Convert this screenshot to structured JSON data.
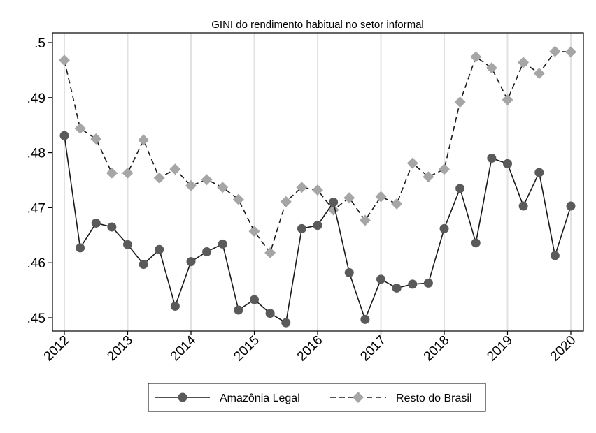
{
  "chart_data": {
    "type": "line",
    "title": "GINI do rendimento habitual no setor informal",
    "xlabel": "",
    "ylabel": "",
    "xlim": [
      2012,
      2020
    ],
    "ylim": [
      0.448,
      0.501
    ],
    "x_ticks": [
      2012,
      2013,
      2014,
      2015,
      2016,
      2017,
      2018,
      2019,
      2020
    ],
    "x_tick_labels": [
      "2012",
      "2013",
      "2014",
      "2015",
      "2016",
      "2017",
      "2018",
      "2019",
      "2020"
    ],
    "y_ticks": [
      0.45,
      0.46,
      0.47,
      0.48,
      0.49,
      0.5
    ],
    "y_tick_labels": [
      ".45",
      ".46",
      ".47",
      ".48",
      ".49",
      ".5"
    ],
    "grid": "vertical",
    "legend_position": "bottom",
    "x": [
      2012,
      2012.25,
      2012.5,
      2012.75,
      2013,
      2013.25,
      2013.5,
      2013.75,
      2014,
      2014.25,
      2014.5,
      2014.75,
      2015,
      2015.25,
      2015.5,
      2015.75,
      2016,
      2016.25,
      2016.5,
      2016.75,
      2017,
      2017.25,
      2017.5,
      2017.75,
      2018,
      2018.25,
      2018.5,
      2018.75,
      2019,
      2019.25,
      2019.5,
      2019.75,
      2020
    ],
    "series": [
      {
        "name": "Amazônia Legal",
        "color": "#1a1a1a",
        "marker_color": "#5a5a5a",
        "marker": "circle",
        "line_style": "solid",
        "values": [
          0.4831,
          0.4627,
          0.4672,
          0.4665,
          0.4633,
          0.4597,
          0.4624,
          0.4521,
          0.4602,
          0.462,
          0.4634,
          0.4514,
          0.4533,
          0.4508,
          0.4491,
          0.4662,
          0.4668,
          0.471,
          0.4582,
          0.4497,
          0.457,
          0.4554,
          0.4561,
          0.4563,
          0.4662,
          0.4735,
          0.4636,
          0.479,
          0.478,
          0.4703,
          0.4764,
          0.4613,
          0.4703
        ]
      },
      {
        "name": "Resto do Brasil",
        "color": "#1a1a1a",
        "marker_color": "#a6a6a6",
        "marker": "diamond",
        "line_style": "dashed",
        "values": [
          0.4968,
          0.4844,
          0.4825,
          0.4763,
          0.4763,
          0.4823,
          0.4754,
          0.477,
          0.474,
          0.4751,
          0.4737,
          0.4715,
          0.4657,
          0.4618,
          0.4711,
          0.4737,
          0.4732,
          0.4696,
          0.4718,
          0.4677,
          0.472,
          0.4707,
          0.4781,
          0.4756,
          0.477,
          0.4892,
          0.4974,
          0.4954,
          0.4896,
          0.4964,
          0.4944,
          0.4984,
          0.4983
        ]
      }
    ]
  }
}
